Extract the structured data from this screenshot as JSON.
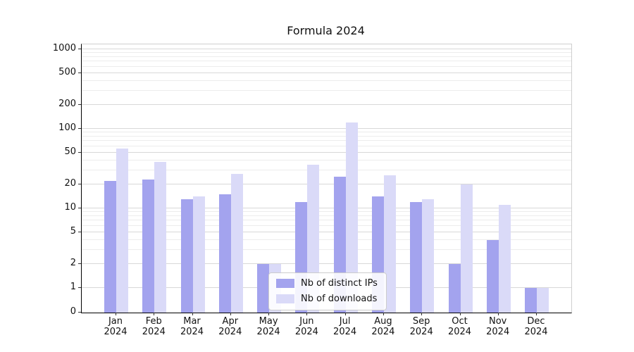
{
  "title": "Formula 2024",
  "chart_data": {
    "type": "bar",
    "title": "Formula 2024",
    "categories": [
      "Jan",
      "Feb",
      "Mar",
      "Apr",
      "May",
      "Jun",
      "Jul",
      "Aug",
      "Sep",
      "Oct",
      "Nov",
      "Dec"
    ],
    "year_label": "2024",
    "series": [
      {
        "name": "Nb of distinct IPs",
        "color": "#a3a3ee",
        "values": [
          22,
          23,
          13,
          15,
          2,
          12,
          25,
          14,
          12,
          2,
          4,
          1
        ]
      },
      {
        "name": "Nb of downloads",
        "color": "#dadaf8",
        "values": [
          57,
          38,
          14,
          27,
          2,
          35,
          120,
          26,
          13,
          20,
          11,
          1
        ]
      }
    ],
    "yticks": [
      0,
      1,
      2,
      5,
      10,
      20,
      50,
      100,
      200,
      500,
      1000
    ],
    "scale": "symlog",
    "ylim": [
      0,
      1150
    ],
    "grid": "horizontal major and minor",
    "legend_position": "lower center inside plot",
    "grid_color_major": "#d8d8d8",
    "grid_color_minor": "#ececec"
  }
}
